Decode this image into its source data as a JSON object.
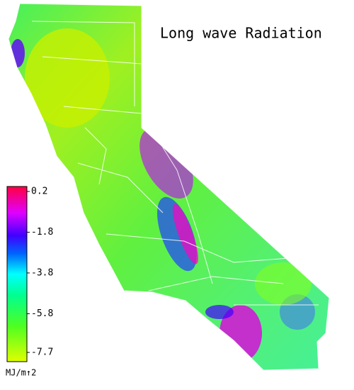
{
  "title": "Long wave Radiation",
  "colorbar": {
    "lim": [
      -7.7,
      0.2
    ],
    "ticks": [
      0.2,
      -1.8,
      -3.8,
      -5.8,
      -7.7
    ],
    "unit": "MJ/m↑2"
  }
}
